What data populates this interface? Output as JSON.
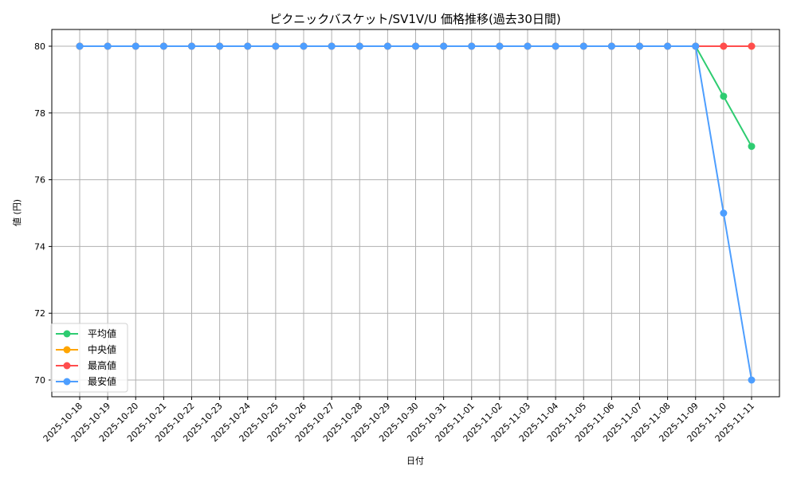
{
  "chart_data": {
    "type": "line",
    "title": "ピクニックバスケット/SV1V/U 価格推移(過去30日間)",
    "xlabel": "日付",
    "ylabel": "値 (円)",
    "ylim": [
      69.5,
      80.5
    ],
    "yticks": [
      70,
      72,
      74,
      76,
      78,
      80
    ],
    "grid": true,
    "legend_position": "lower left",
    "x": [
      "2025-10-18",
      "2025-10-19",
      "2025-10-20",
      "2025-10-21",
      "2025-10-22",
      "2025-10-23",
      "2025-10-24",
      "2025-10-25",
      "2025-10-26",
      "2025-10-27",
      "2025-10-28",
      "2025-10-29",
      "2025-10-30",
      "2025-10-31",
      "2025-11-01",
      "2025-11-02",
      "2025-11-03",
      "2025-11-04",
      "2025-11-05",
      "2025-11-06",
      "2025-11-07",
      "2025-11-08",
      "2025-11-09",
      "2025-11-10",
      "2025-11-11"
    ],
    "series": [
      {
        "name": "平均値",
        "color": "#2ecc71",
        "values": [
          80,
          80,
          80,
          80,
          80,
          80,
          80,
          80,
          80,
          80,
          80,
          80,
          80,
          80,
          80,
          80,
          80,
          80,
          80,
          80,
          80,
          80,
          80,
          78.5,
          77
        ]
      },
      {
        "name": "中央値",
        "color": "#ffa500",
        "values": [
          80,
          80,
          80,
          80,
          80,
          80,
          80,
          80,
          80,
          80,
          80,
          80,
          80,
          80,
          80,
          80,
          80,
          80,
          80,
          80,
          80,
          80,
          80,
          80,
          80
        ]
      },
      {
        "name": "最高値",
        "color": "#ff4d4d",
        "values": [
          80,
          80,
          80,
          80,
          80,
          80,
          80,
          80,
          80,
          80,
          80,
          80,
          80,
          80,
          80,
          80,
          80,
          80,
          80,
          80,
          80,
          80,
          80,
          80,
          80
        ]
      },
      {
        "name": "最安値",
        "color": "#4d9eff",
        "values": [
          80,
          80,
          80,
          80,
          80,
          80,
          80,
          80,
          80,
          80,
          80,
          80,
          80,
          80,
          80,
          80,
          80,
          80,
          80,
          80,
          80,
          80,
          80,
          75,
          70
        ]
      }
    ]
  }
}
